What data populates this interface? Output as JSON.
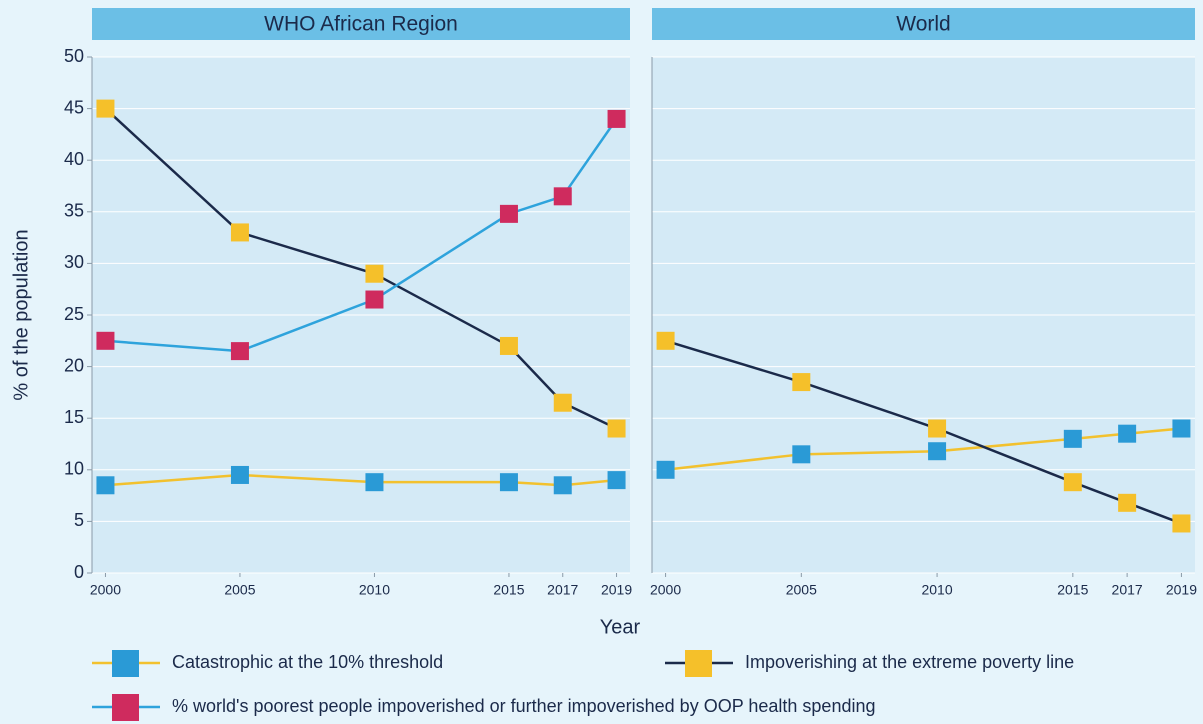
{
  "chart_data": [
    {
      "type": "line",
      "title": "WHO African Region",
      "ylabel": "% of the population",
      "xlabel": "Year",
      "x": [
        2000,
        2005,
        2010,
        2015,
        2017,
        2019
      ],
      "xlim": [
        1999.5,
        2019.5
      ],
      "xticks": [
        2000,
        2005,
        2010,
        2015,
        2017,
        2019
      ],
      "ylim": [
        0,
        50
      ],
      "yticks": [
        0,
        5,
        10,
        15,
        20,
        25,
        30,
        35,
        40,
        45,
        50
      ],
      "grid": true,
      "series": [
        {
          "name": "Catastrophic at the 10% threshold",
          "color": "#f2c12e",
          "marker_color": "#2a9ad6",
          "values": [
            8.5,
            9.5,
            8.8,
            8.8,
            8.5,
            9.0
          ]
        },
        {
          "name": "Impoverishing at the extreme poverty line",
          "color": "#1b2a4a",
          "marker_color": "#f5c02a",
          "values": [
            45,
            33,
            29,
            22,
            16.5,
            14
          ]
        },
        {
          "name": "% world's poorest people impoverished or further impoverished by OOP health spending",
          "color": "#2ea3dc",
          "marker_color": "#cf2b5e",
          "values": [
            22.5,
            21.5,
            26.5,
            34.8,
            36.5,
            44
          ]
        }
      ]
    },
    {
      "type": "line",
      "title": "World",
      "x": [
        2000,
        2005,
        2010,
        2015,
        2017,
        2019
      ],
      "xlim": [
        1999.5,
        2019.5
      ],
      "xticks": [
        2000,
        2005,
        2010,
        2015,
        2017,
        2019
      ],
      "ylim": [
        0,
        50
      ],
      "yticks": [
        0,
        5,
        10,
        15,
        20,
        25,
        30,
        35,
        40,
        45,
        50
      ],
      "grid": true,
      "series": [
        {
          "name": "Catastrophic at the 10% threshold",
          "color": "#f2c12e",
          "marker_color": "#2a9ad6",
          "values": [
            10,
            11.5,
            11.8,
            13,
            13.5,
            14
          ]
        },
        {
          "name": "Impoverishing at the extreme poverty line",
          "color": "#1b2a4a",
          "marker_color": "#f5c02a",
          "values": [
            22.5,
            18.5,
            14,
            8.8,
            6.8,
            4.8
          ]
        }
      ]
    }
  ]
}
